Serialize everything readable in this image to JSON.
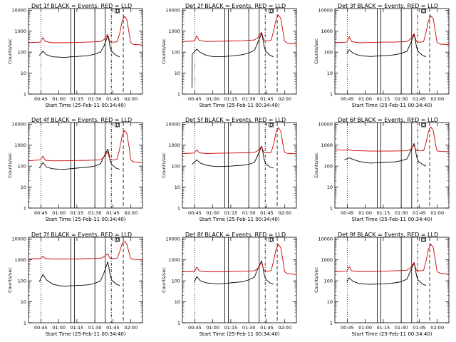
{
  "figure": {
    "xlabel": "Start Time (25-Feb-11 00:34:40)",
    "ylabel": "Counts/sec",
    "x_tick_labels": [
      "00:45",
      "01:00",
      "01:15",
      "01:30",
      "01:45",
      "02:00"
    ],
    "y_tick_labels": [
      "1",
      "10",
      "100",
      "1000",
      "10000"
    ],
    "flare_marker_label": "D",
    "colors": {
      "events": "#000000",
      "lld": "#cc0000",
      "axes": "#000000"
    }
  },
  "chart_data": [
    {
      "type": "line",
      "title": "Det 1f BLACK = Events, RED = LLD",
      "xlabel": "Start Time (25-Feb-11 00:34:40)",
      "ylabel": "Counts/sec",
      "x_unit": "minutes after 00:34:40",
      "xlim": [
        0,
        95
      ],
      "ylim": [
        1,
        12000
      ],
      "y_scale": "log",
      "series": [
        {
          "name": "Events",
          "color": "#000000",
          "x": [
            9,
            12,
            15,
            20,
            25,
            30,
            35,
            40,
            45,
            50,
            55,
            60,
            63,
            66,
            67,
            68,
            69,
            70,
            71,
            73,
            76
          ],
          "y": [
            70,
            110,
            75,
            60,
            58,
            55,
            60,
            62,
            65,
            68,
            80,
            100,
            200,
            600,
            380,
            170,
            120,
            100,
            90,
            70,
            60
          ]
        },
        {
          "name": "LLD",
          "color": "#cc0000",
          "x": [
            0,
            10,
            12,
            14,
            20,
            30,
            40,
            50,
            60,
            63,
            66,
            67,
            68,
            69,
            72,
            74,
            76,
            78,
            80,
            82,
            84,
            85,
            86,
            88,
            95
          ],
          "y": [
            280,
            300,
            500,
            320,
            280,
            280,
            290,
            300,
            320,
            400,
            700,
            450,
            320,
            300,
            300,
            320,
            800,
            3000,
            5200,
            3500,
            700,
            300,
            260,
            230,
            220
          ]
        }
      ]
    },
    {
      "type": "line",
      "title": "Det 2f BLACK = Events, RED = LLD",
      "xlabel": "Start Time (25-Feb-11 00:34:40)",
      "ylabel": "Counts/sec",
      "x_unit": "minutes after 00:34:40",
      "xlim": [
        0,
        95
      ],
      "ylim": [
        1,
        12000
      ],
      "y_scale": "log",
      "series": [
        {
          "name": "Events",
          "color": "#000000",
          "x": [
            8,
            8.2,
            9,
            12,
            15,
            20,
            25,
            30,
            35,
            40,
            45,
            50,
            55,
            60,
            63,
            66,
            67,
            68,
            69,
            70,
            71,
            73,
            76
          ],
          "y": [
            2,
            80,
            90,
            140,
            95,
            70,
            62,
            60,
            62,
            65,
            70,
            75,
            90,
            120,
            300,
            800,
            450,
            200,
            130,
            100,
            90,
            70,
            60
          ]
        },
        {
          "name": "LLD",
          "color": "#cc0000",
          "x": [
            0,
            10,
            12,
            14,
            20,
            30,
            40,
            50,
            60,
            63,
            66,
            67,
            68,
            69,
            72,
            74,
            76,
            78,
            80,
            82,
            84,
            85,
            86,
            88,
            95
          ],
          "y": [
            320,
            340,
            600,
            360,
            320,
            330,
            340,
            350,
            380,
            500,
            900,
            550,
            380,
            350,
            350,
            380,
            1000,
            3500,
            6000,
            4000,
            800,
            350,
            300,
            260,
            250
          ]
        }
      ]
    },
    {
      "type": "line",
      "title": "Det 3f BLACK = Events, RED = LLD",
      "xlabel": "Start Time (25-Feb-11 00:34:40)",
      "ylabel": "Counts/sec",
      "x_unit": "minutes after 00:34:40",
      "xlim": [
        0,
        95
      ],
      "ylim": [
        1,
        12000
      ],
      "y_scale": "log",
      "series": [
        {
          "name": "Events",
          "color": "#000000",
          "x": [
            10,
            12,
            15,
            20,
            25,
            30,
            35,
            40,
            45,
            50,
            55,
            60,
            63,
            66,
            67,
            68,
            69,
            70,
            71,
            73,
            76
          ],
          "y": [
            80,
            130,
            90,
            70,
            65,
            62,
            65,
            68,
            70,
            75,
            85,
            110,
            250,
            700,
            400,
            180,
            120,
            100,
            90,
            70,
            60
          ]
        },
        {
          "name": "LLD",
          "color": "#cc0000",
          "x": [
            0,
            10,
            12,
            14,
            20,
            30,
            40,
            50,
            60,
            63,
            66,
            67,
            68,
            69,
            72,
            74,
            76,
            78,
            80,
            82,
            84,
            85,
            86,
            88,
            95
          ],
          "y": [
            280,
            300,
            550,
            320,
            280,
            290,
            300,
            300,
            320,
            420,
            750,
            480,
            330,
            300,
            300,
            320,
            900,
            3200,
            5500,
            3800,
            750,
            320,
            270,
            240,
            230
          ]
        }
      ]
    },
    {
      "type": "line",
      "title": "Det 4f BLACK = Events, RED = LLD",
      "xlabel": "Start Time (25-Feb-11 00:34:40)",
      "ylabel": "Counts/sec",
      "x_unit": "minutes after 00:34:40",
      "xlim": [
        0,
        95
      ],
      "ylim": [
        1,
        12000
      ],
      "y_scale": "log",
      "series": [
        {
          "name": "Events",
          "color": "#000000",
          "x": [
            9,
            12,
            15,
            20,
            25,
            30,
            35,
            40,
            45,
            50,
            55,
            60,
            63,
            66,
            67,
            68,
            69,
            70,
            71,
            73,
            76
          ],
          "y": [
            80,
            150,
            90,
            75,
            72,
            70,
            75,
            80,
            85,
            90,
            100,
            130,
            300,
            650,
            400,
            190,
            130,
            110,
            100,
            80,
            70
          ]
        },
        {
          "name": "LLD",
          "color": "#cc0000",
          "x": [
            0,
            10,
            12,
            14,
            20,
            30,
            40,
            50,
            60,
            63,
            66,
            67,
            68,
            69,
            72,
            74,
            76,
            78,
            80,
            82,
            84,
            85,
            86,
            88,
            95
          ],
          "y": [
            180,
            200,
            300,
            190,
            180,
            180,
            185,
            190,
            200,
            280,
            500,
            300,
            210,
            200,
            200,
            220,
            700,
            2800,
            5000,
            3500,
            700,
            220,
            180,
            160,
            150
          ]
        }
      ]
    },
    {
      "type": "line",
      "title": "Det 5f BLACK = Events, RED = LLD",
      "xlabel": "Start Time (25-Feb-11 00:34:40)",
      "ylabel": "Counts/sec",
      "x_unit": "minutes after 00:34:40",
      "xlim": [
        0,
        95
      ],
      "ylim": [
        1,
        12000
      ],
      "y_scale": "log",
      "series": [
        {
          "name": "Events",
          "color": "#000000",
          "x": [
            8,
            12,
            15,
            20,
            25,
            30,
            35,
            40,
            45,
            50,
            55,
            60,
            63,
            66,
            67,
            68,
            69,
            70,
            71,
            73,
            76
          ],
          "y": [
            120,
            200,
            140,
            110,
            100,
            95,
            98,
            100,
            105,
            110,
            120,
            150,
            350,
            900,
            500,
            220,
            150,
            120,
            110,
            90,
            80
          ]
        },
        {
          "name": "LLD",
          "color": "#cc0000",
          "x": [
            0,
            10,
            12,
            14,
            20,
            30,
            40,
            50,
            60,
            63,
            66,
            67,
            68,
            69,
            72,
            74,
            76,
            78,
            80,
            82,
            84,
            85,
            86,
            88,
            95
          ],
          "y": [
            400,
            420,
            600,
            430,
            400,
            410,
            420,
            430,
            450,
            550,
            900,
            600,
            460,
            430,
            430,
            450,
            1100,
            4000,
            7000,
            4500,
            900,
            480,
            430,
            400,
            390
          ]
        }
      ]
    },
    {
      "type": "line",
      "title": "Det 6f BLACK = Events, RED = LLD",
      "xlabel": "Start Time (25-Feb-11 00:34:40)",
      "ylabel": "Counts/sec",
      "x_unit": "minutes after 00:34:40",
      "xlim": [
        0,
        95
      ],
      "ylim": [
        1,
        12000
      ],
      "y_scale": "log",
      "series": [
        {
          "name": "Events",
          "color": "#000000",
          "x": [
            8,
            12,
            15,
            20,
            25,
            30,
            35,
            40,
            45,
            50,
            55,
            60,
            63,
            66,
            67,
            68,
            69,
            70,
            71,
            73,
            76
          ],
          "y": [
            200,
            250,
            210,
            170,
            150,
            140,
            145,
            150,
            155,
            160,
            180,
            220,
            500,
            1200,
            700,
            300,
            200,
            160,
            150,
            120,
            100
          ]
        },
        {
          "name": "LLD",
          "color": "#cc0000",
          "x": [
            0,
            10,
            12,
            14,
            20,
            30,
            40,
            50,
            60,
            63,
            66,
            67,
            68,
            69,
            72,
            74,
            76,
            78,
            80,
            82,
            84,
            85,
            86,
            88,
            95
          ],
          "y": [
            600,
            580,
            620,
            560,
            540,
            520,
            520,
            530,
            540,
            620,
            1000,
            700,
            560,
            540,
            540,
            560,
            1300,
            4500,
            7500,
            5000,
            1000,
            560,
            520,
            500,
            490
          ]
        }
      ]
    },
    {
      "type": "line",
      "title": "Det 7f BLACK = Events, RED = LLD",
      "xlabel": "Start Time (25-Feb-11 00:34:40)",
      "ylabel": "Counts/sec",
      "x_unit": "minutes after 00:34:40",
      "xlim": [
        0,
        95
      ],
      "ylim": [
        1,
        12000
      ],
      "y_scale": "log",
      "series": [
        {
          "name": "Events",
          "color": "#000000",
          "x": [
            9,
            12,
            15,
            20,
            25,
            30,
            35,
            40,
            45,
            50,
            55,
            60,
            63,
            66,
            67,
            68,
            69,
            70,
            71,
            73,
            76
          ],
          "y": [
            90,
            200,
            110,
            70,
            60,
            55,
            58,
            60,
            62,
            65,
            75,
            100,
            250,
            800,
            450,
            190,
            120,
            100,
            90,
            70,
            60
          ]
        },
        {
          "name": "LLD",
          "color": "#cc0000",
          "x": [
            0,
            10,
            12,
            14,
            20,
            30,
            40,
            50,
            60,
            63,
            66,
            67,
            68,
            69,
            72,
            74,
            76,
            78,
            80,
            82,
            84,
            85,
            86,
            88,
            95
          ],
          "y": [
            1100,
            1150,
            1500,
            1150,
            1100,
            1100,
            1100,
            1150,
            1200,
            1400,
            2000,
            1500,
            1200,
            1150,
            1150,
            1200,
            2500,
            6000,
            8000,
            5500,
            2000,
            1200,
            1100,
            1050,
            1000
          ]
        }
      ]
    },
    {
      "type": "line",
      "title": "Det 8f BLACK = Events, RED = LLD",
      "xlabel": "Start Time (25-Feb-11 00:34:40)",
      "ylabel": "Counts/sec",
      "x_unit": "minutes after 00:34:40",
      "xlim": [
        0,
        95
      ],
      "ylim": [
        1,
        12000
      ],
      "y_scale": "log",
      "series": [
        {
          "name": "Events",
          "color": "#000000",
          "x": [
            10,
            12,
            15,
            20,
            25,
            30,
            35,
            40,
            45,
            50,
            55,
            60,
            63,
            66,
            67,
            68,
            69,
            70,
            71,
            73,
            76
          ],
          "y": [
            90,
            160,
            100,
            80,
            75,
            72,
            75,
            80,
            85,
            90,
            110,
            150,
            400,
            900,
            500,
            220,
            140,
            110,
            100,
            80,
            70
          ]
        },
        {
          "name": "LLD",
          "color": "#cc0000",
          "x": [
            0,
            10,
            12,
            14,
            20,
            30,
            40,
            50,
            60,
            63,
            66,
            67,
            68,
            69,
            72,
            74,
            76,
            78,
            80,
            82,
            84,
            85,
            86,
            88,
            95
          ],
          "y": [
            270,
            280,
            450,
            300,
            270,
            270,
            280,
            290,
            300,
            400,
            800,
            480,
            310,
            290,
            290,
            310,
            900,
            3200,
            5500,
            3800,
            750,
            300,
            250,
            220,
            200
          ]
        }
      ]
    },
    {
      "type": "line",
      "title": "Det 9f BLACK = Events, RED = LLD",
      "xlabel": "Start Time (25-Feb-11 00:34:40)",
      "ylabel": "Counts/sec",
      "x_unit": "minutes after 00:34:40",
      "xlim": [
        0,
        95
      ],
      "ylim": [
        1,
        12000
      ],
      "y_scale": "log",
      "series": [
        {
          "name": "Events",
          "color": "#000000",
          "x": [
            10,
            12,
            15,
            20,
            25,
            30,
            35,
            40,
            45,
            50,
            55,
            60,
            63,
            66,
            67,
            68,
            69,
            70,
            71,
            73,
            76
          ],
          "y": [
            90,
            140,
            95,
            75,
            70,
            68,
            70,
            72,
            75,
            80,
            90,
            120,
            300,
            700,
            400,
            180,
            120,
            100,
            90,
            70,
            60
          ]
        },
        {
          "name": "LLD",
          "color": "#cc0000",
          "x": [
            0,
            10,
            12,
            14,
            20,
            30,
            40,
            50,
            60,
            63,
            66,
            67,
            68,
            69,
            72,
            74,
            76,
            78,
            80,
            82,
            84,
            85,
            86,
            88,
            95
          ],
          "y": [
            280,
            290,
            480,
            300,
            280,
            280,
            290,
            300,
            320,
            420,
            750,
            460,
            320,
            300,
            300,
            320,
            900,
            3300,
            5600,
            3900,
            750,
            300,
            260,
            230,
            210
          ]
        }
      ]
    }
  ]
}
